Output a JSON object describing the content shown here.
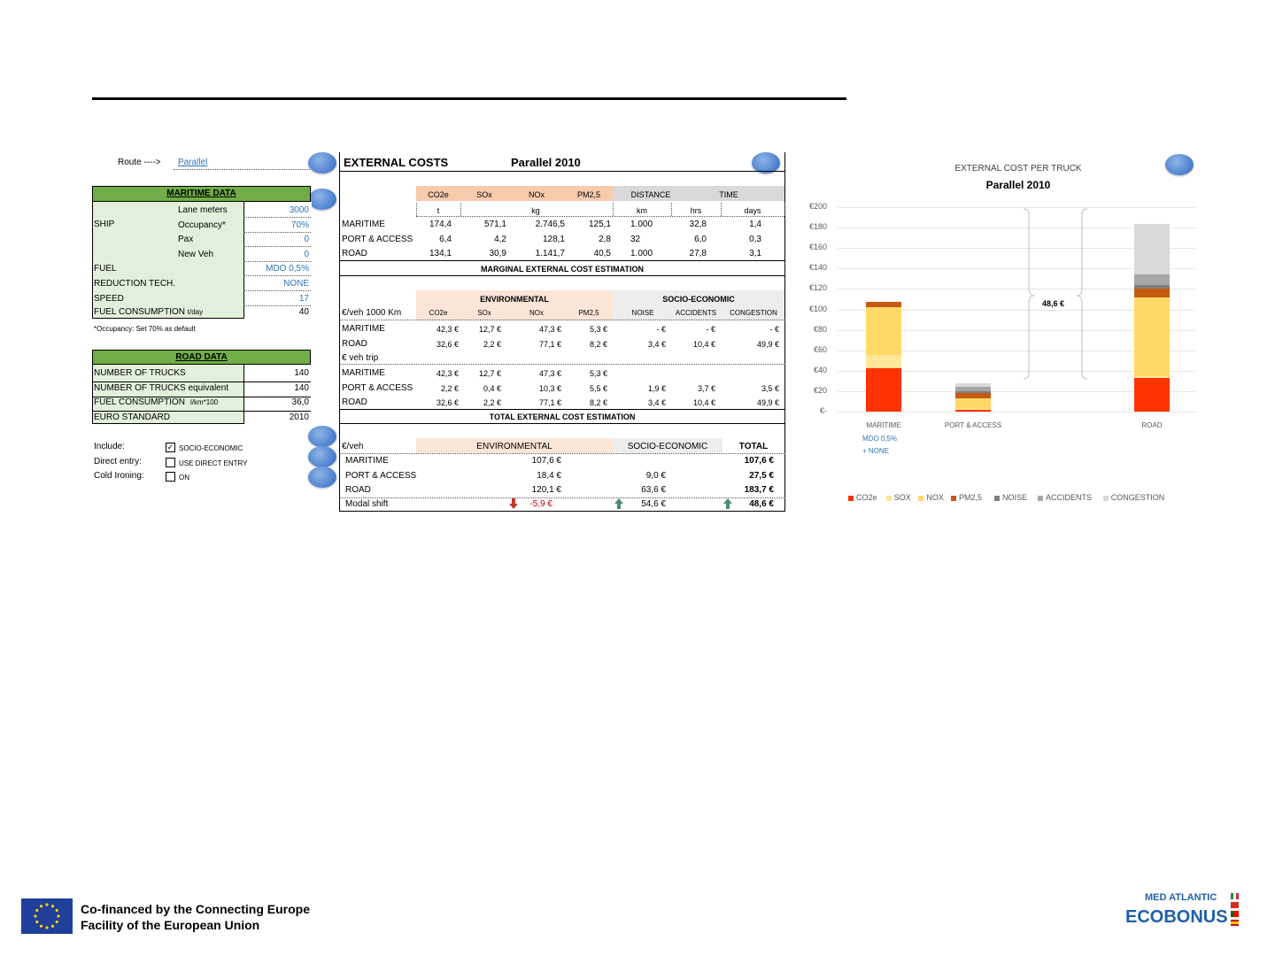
{
  "route": {
    "label": "Route ---->",
    "value": "Parallel"
  },
  "maritime": {
    "header": "MARITIME DATA",
    "ship_label": "SHIP",
    "rows": [
      {
        "label": "Lane meters",
        "value": "3000"
      },
      {
        "label": "Occupancy*",
        "value": "70%"
      },
      {
        "label": "Pax",
        "value": "0"
      },
      {
        "label": "New Veh",
        "value": "0"
      }
    ],
    "fuel": {
      "label": "FUEL",
      "value": "MDO 0,5%"
    },
    "reduction": {
      "label": "REDUCTION TECH.",
      "value": "NONE"
    },
    "speed": {
      "label": "SPEED",
      "value": "17"
    },
    "consumption": {
      "label": "FUEL CONSUMPTION",
      "unit": "t/day",
      "value": "40"
    },
    "note": "*Occupancy: Set 70% as default"
  },
  "road": {
    "header": "ROAD DATA",
    "rows": [
      {
        "label": "NUMBER OF TRUCKS",
        "unit": "",
        "value": "140"
      },
      {
        "label": "NUMBER OF TRUCKS equivalent",
        "unit": "",
        "value": "140"
      },
      {
        "label": "FUEL CONSUMPTION",
        "unit": "l/km*100",
        "value": "36,0"
      },
      {
        "label": "EURO STANDARD",
        "unit": "",
        "value": "2010"
      }
    ]
  },
  "options": {
    "include": {
      "label": "Include:",
      "text": "SOCIO-ECONOMIC",
      "checked": "✓"
    },
    "direct": {
      "label": "Direct entry:",
      "text": "USE DIRECT ENTRY",
      "checked": ""
    },
    "cold": {
      "label": "Cold Ironing:",
      "text": "ON",
      "checked": ""
    }
  },
  "ext": {
    "title": "EXTERNAL COSTS",
    "subtitle": "Parallel 2010",
    "emis_headers": [
      "CO2e",
      "SOx",
      "NOx",
      "PM2,5",
      "DISTANCE",
      "TIME"
    ],
    "units": [
      "t",
      "kg",
      "km",
      "hrs",
      "days"
    ],
    "emis_rows": [
      {
        "label": "MARITIME",
        "v": [
          "174,4",
          "571,1",
          "2.746,5",
          "125,1",
          "1.000",
          "32,8",
          "1,4"
        ]
      },
      {
        "label": "PORT & ACCESS",
        "v": [
          "6,4",
          "4,2",
          "128,1",
          "2,8",
          "32",
          "6,0",
          "0,3"
        ]
      },
      {
        "label": "ROAD",
        "v": [
          "134,1",
          "30,9",
          "1.141,7",
          "40,5",
          "1.000",
          "27,8",
          "3,1"
        ]
      }
    ],
    "marginal_title": "MARGINAL EXTERNAL COST ESTIMATION",
    "env": "ENVIRONMENTAL",
    "soc": "SOCIO-ECONOMIC",
    "per1000": "€/veh 1000 Km",
    "cost_headers": [
      "CO2e",
      "SOx",
      "NOx",
      "PM2,5",
      "NOISE",
      "ACCIDENTS",
      "CONGESTION"
    ],
    "rows1000": [
      {
        "label": "MARITIME",
        "v": [
          "42,3 €",
          "12,7 €",
          "47,3 €",
          "5,3 €",
          "-   €",
          "-   €",
          "-   €"
        ]
      },
      {
        "label": "ROAD",
        "v": [
          "32,6 €",
          "2,2 €",
          "77,1 €",
          "8,2 €",
          "3,4 €",
          "10,4 €",
          "49,9 €"
        ]
      }
    ],
    "trip": "€ veh trip",
    "rowsTrip": [
      {
        "label": "MARITIME",
        "v": [
          "42,3 €",
          "12,7 €",
          "47,3 €",
          "5,3 €",
          "",
          "",
          ""
        ]
      },
      {
        "label": "PORT & ACCESS",
        "v": [
          "2,2 €",
          "0,4 €",
          "10,3 €",
          "5,5 €",
          "1,9 €",
          "3,7 €",
          "3,5 €"
        ]
      },
      {
        "label": "ROAD",
        "v": [
          "32,6 €",
          "2,2 €",
          "77,1 €",
          "8,2 €",
          "3,4 €",
          "10,4 €",
          "49,9 €"
        ]
      }
    ],
    "total_title": "TOTAL EXTERNAL COST ESTIMATION",
    "per_veh": "€/veh",
    "total_label": "TOTAL",
    "totals": [
      {
        "label": "MARITIME",
        "env": "107,6 €",
        "soc": "",
        "total": "107,6 €"
      },
      {
        "label": "PORT & ACCESS",
        "env": "18,4 €",
        "soc": "9,0 €",
        "total": "27,5 €"
      },
      {
        "label": "ROAD",
        "env": "120,1 €",
        "soc": "63,6 €",
        "total": "183,7 €"
      }
    ],
    "shift": {
      "label": "Modal shift",
      "env": "-5,9 €",
      "soc": "54,6 €",
      "total": "48,6 €"
    }
  },
  "chart_data": {
    "type": "bar",
    "title": "EXTERNAL COST PER TRUCK",
    "subtitle": "Parallel 2010",
    "categories": [
      "MARITIME",
      "PORT & ACCESS",
      "ROAD"
    ],
    "sub_label": [
      "MDO 0,5%",
      "+ NONE"
    ],
    "ylim": [
      0,
      200
    ],
    "yticks": [
      "€-",
      "€20",
      "€40",
      "€60",
      "€80",
      "€100",
      "€120",
      "€140",
      "€160",
      "€180",
      "€200"
    ],
    "annotation": "48,6 €",
    "legend_position": "bottom",
    "series": [
      {
        "name": "CO2e",
        "color": "#ff3300",
        "values": [
          42.3,
          2.2,
          32.6
        ]
      },
      {
        "name": "SOX",
        "color": "#ffe699",
        "values": [
          12.7,
          0.4,
          2.2
        ]
      },
      {
        "name": "NOX",
        "color": "#ffd966",
        "values": [
          47.3,
          10.3,
          77.1
        ]
      },
      {
        "name": "PM2,5",
        "color": "#c55a11",
        "values": [
          5.3,
          5.5,
          8.2
        ]
      },
      {
        "name": "NOISE",
        "color": "#7f7f7f",
        "values": [
          0,
          1.9,
          3.4
        ]
      },
      {
        "name": "ACCIDENTS",
        "color": "#a6a6a6",
        "values": [
          0,
          3.7,
          10.4
        ]
      },
      {
        "name": "CONGESTION",
        "color": "#d9d9d9",
        "values": [
          0,
          3.5,
          49.9
        ]
      }
    ]
  },
  "footer": {
    "eu_line1": "Co-financed by the Connecting Europe",
    "eu_line2": "Facility of the European Union",
    "brand_top": "MED ATLANTIC",
    "brand_main": "ECOBONUS"
  }
}
